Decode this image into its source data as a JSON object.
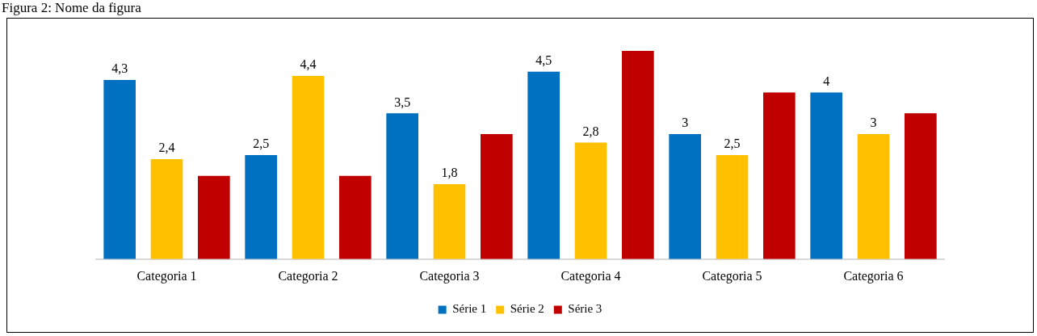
{
  "chart_data": {
    "type": "bar",
    "title": "Figura 2: Nome da figura",
    "categories": [
      "Categoria 1",
      "Categoria 2",
      "Categoria 3",
      "Categoria 4",
      "Categoria 5",
      "Categoria 6"
    ],
    "series": [
      {
        "name": "Série 1",
        "color": "#0070c0",
        "values": [
          4.3,
          2.5,
          3.5,
          4.5,
          3,
          4
        ],
        "value_labels": [
          "4,3",
          "2,5",
          "3,5",
          "4,5",
          "3",
          "4"
        ]
      },
      {
        "name": "Série 2",
        "color": "#ffc000",
        "values": [
          2.4,
          4.4,
          1.8,
          2.8,
          2.5,
          3
        ],
        "value_labels": [
          "2,4",
          "4,4",
          "1,8",
          "2,8",
          "2,5",
          "3"
        ]
      },
      {
        "name": "Série 3",
        "color": "#c00000",
        "values": [
          2,
          2,
          3,
          5,
          4,
          3.5
        ]
      }
    ],
    "legend": "bottom",
    "grid": false
  }
}
